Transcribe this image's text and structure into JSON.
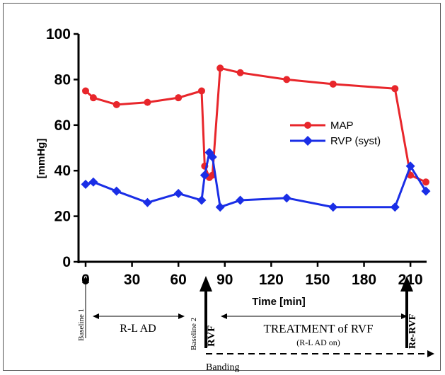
{
  "chart_data": {
    "type": "line",
    "ylabel": "[mmHg]",
    "xlabel": "Time [min]",
    "xlim": [
      0,
      220
    ],
    "ylim": [
      0,
      100
    ],
    "x_ticks": [
      "0",
      "30",
      "60",
      "90",
      "120",
      "150",
      "180",
      "210"
    ],
    "y_ticks": [
      "0",
      "20",
      "40",
      "60",
      "80",
      "100"
    ],
    "legend_position": "right",
    "grid": false,
    "series": [
      {
        "name": "MAP",
        "color": "#e8262b",
        "marker": "circle",
        "x": [
          0,
          5,
          20,
          40,
          60,
          75,
          77,
          80,
          82,
          87,
          100,
          130,
          160,
          200,
          210,
          220
        ],
        "y": [
          75,
          72,
          69,
          70,
          72,
          75,
          42,
          37,
          38,
          85,
          83,
          80,
          78,
          76,
          38,
          35
        ]
      },
      {
        "name": "RVP (syst)",
        "color": "#1a2ee6",
        "marker": "diamond",
        "x": [
          0,
          5,
          20,
          40,
          60,
          75,
          77,
          80,
          82,
          87,
          100,
          130,
          160,
          200,
          210,
          220
        ],
        "y": [
          34,
          35,
          31,
          26,
          30,
          27,
          38,
          48,
          46,
          24,
          27,
          28,
          24,
          24,
          42,
          31
        ]
      }
    ]
  },
  "timeline": {
    "baseline1": "Baseline 1",
    "baseline2": "Baseline 2",
    "rl_ad": "R-L AD",
    "rvf": "RVF",
    "treatment": "TREATMENT of RVF",
    "treatment_sub": "(R-L AD on)",
    "re_rvf": "Re-RVF",
    "banding": "Banding"
  }
}
